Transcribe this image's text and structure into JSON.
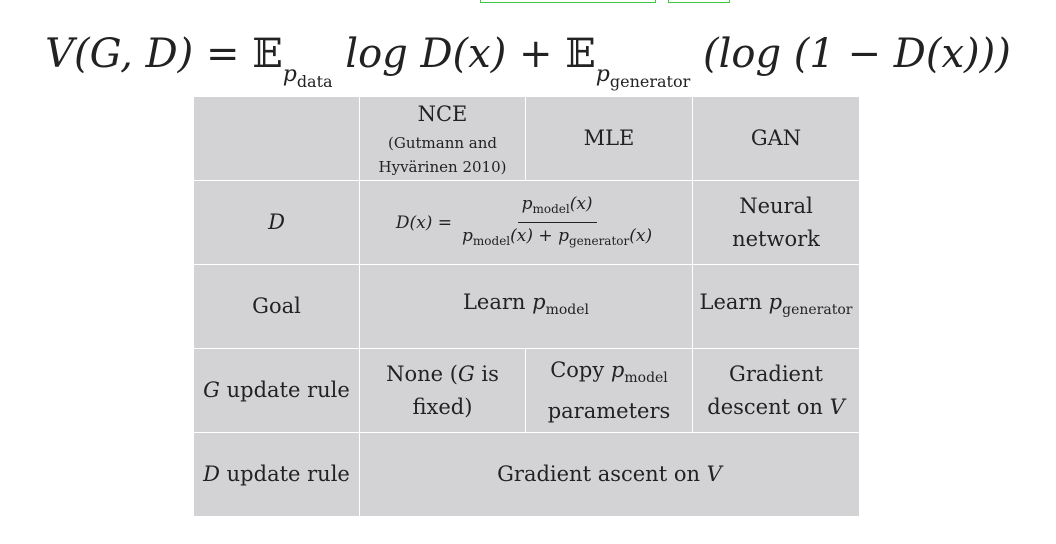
{
  "formula": {
    "lhs": "V(G, D)",
    "equals": "=",
    "expect_symbol": "𝔼",
    "p_symbol": "p",
    "term1_sub": "data",
    "term1_body": "log D(x)",
    "plus": "+",
    "term2_sub": "generator",
    "term2_body": "(log (1 − D(x)))"
  },
  "table": {
    "header": {
      "col1": "NCE",
      "col1_note": "(Gutmann and Hyvärinen 2010)",
      "col2": "MLE",
      "col3": "GAN"
    },
    "row_d": {
      "label": "D",
      "formula_lhs": "D(x) =",
      "formula_num": "p",
      "formula_num_sub": "model",
      "formula_num_arg": "(x)",
      "formula_den_a": "p",
      "formula_den_a_sub": "model",
      "formula_den_a_arg": "(x) + ",
      "formula_den_b": "p",
      "formula_den_b_sub": "generator",
      "formula_den_b_arg": "(x)",
      "gan": "Neural network"
    },
    "row_goal": {
      "label": "Goal",
      "nce_mle_prefix": "Learn ",
      "nce_mle_p": "p",
      "nce_mle_sub": "model",
      "gan_prefix": "Learn ",
      "gan_p": "p",
      "gan_sub": "generator"
    },
    "row_g_update": {
      "label_var": "G",
      "label_text": " update rule",
      "nce_a": "None (",
      "nce_var": "G",
      "nce_b": " is fixed)",
      "mle_prefix": "Copy ",
      "mle_p": "p",
      "mle_sub": "model",
      "mle_suffix": " parameters",
      "gan_text": "Gradient descent on ",
      "gan_var": "V"
    },
    "row_d_update": {
      "label_var": "D",
      "label_text": " update rule",
      "all_text": "Gradient ascent on ",
      "all_var": "V"
    }
  },
  "colors": {
    "table_bg": "#d3d3d6",
    "grid": "#ffffff",
    "text": "#222222",
    "highlight": "#3cc83c"
  }
}
